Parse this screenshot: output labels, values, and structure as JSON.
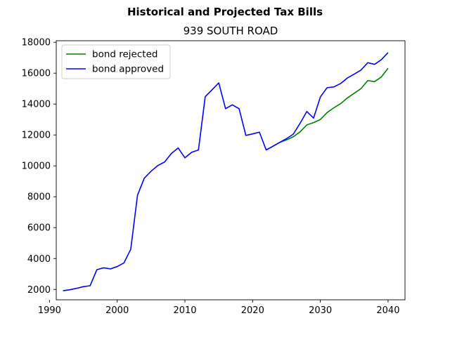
{
  "chart_data": {
    "type": "line",
    "title": "Historical and Projected Tax Bills",
    "subtitle": "939 SOUTH ROAD",
    "xlabel": "",
    "ylabel": "",
    "xlim": [
      1991,
      2042.5
    ],
    "ylim": [
      1330,
      18100
    ],
    "xticks": [
      1990,
      2000,
      2010,
      2020,
      2030,
      2040
    ],
    "yticks": [
      2000,
      4000,
      6000,
      8000,
      10000,
      12000,
      14000,
      16000,
      18000
    ],
    "legend_position": "top-left",
    "series": [
      {
        "name": "bond rejected",
        "color": "#008000",
        "x": [
          2022,
          2023,
          2024,
          2025,
          2026,
          2027,
          2028,
          2029,
          2030,
          2031,
          2032,
          2033,
          2034,
          2035,
          2036,
          2037,
          2038,
          2039,
          2040
        ],
        "y": [
          11030,
          11270,
          11520,
          11680,
          11880,
          12200,
          12650,
          12800,
          13000,
          13450,
          13760,
          14030,
          14400,
          14700,
          15000,
          15520,
          15450,
          15750,
          16320
        ]
      },
      {
        "name": "bond approved",
        "color": "#0000ff",
        "x": [
          1992,
          1993,
          1994,
          1995,
          1996,
          1997,
          1998,
          1999,
          2000,
          2001,
          2002,
          2003,
          2004,
          2005,
          2006,
          2007,
          2008,
          2009,
          2010,
          2011,
          2012,
          2013,
          2014,
          2015,
          2016,
          2017,
          2018,
          2019,
          2020,
          2021,
          2022,
          2023,
          2024,
          2025,
          2026,
          2027,
          2028,
          2029,
          2030,
          2031,
          2032,
          2033,
          2034,
          2035,
          2036,
          2037,
          2038,
          2039,
          2040
        ],
        "y": [
          1920,
          1980,
          2070,
          2180,
          2240,
          3280,
          3400,
          3330,
          3480,
          3720,
          4600,
          8100,
          9200,
          9650,
          10020,
          10250,
          10800,
          11160,
          10520,
          10880,
          11030,
          14480,
          14920,
          15370,
          13700,
          13950,
          13700,
          11970,
          12070,
          12180,
          11030,
          11270,
          11520,
          11760,
          12050,
          12750,
          13520,
          13090,
          14460,
          15060,
          15110,
          15330,
          15690,
          15940,
          16200,
          16680,
          16570,
          16870,
          17330
        ]
      }
    ]
  }
}
